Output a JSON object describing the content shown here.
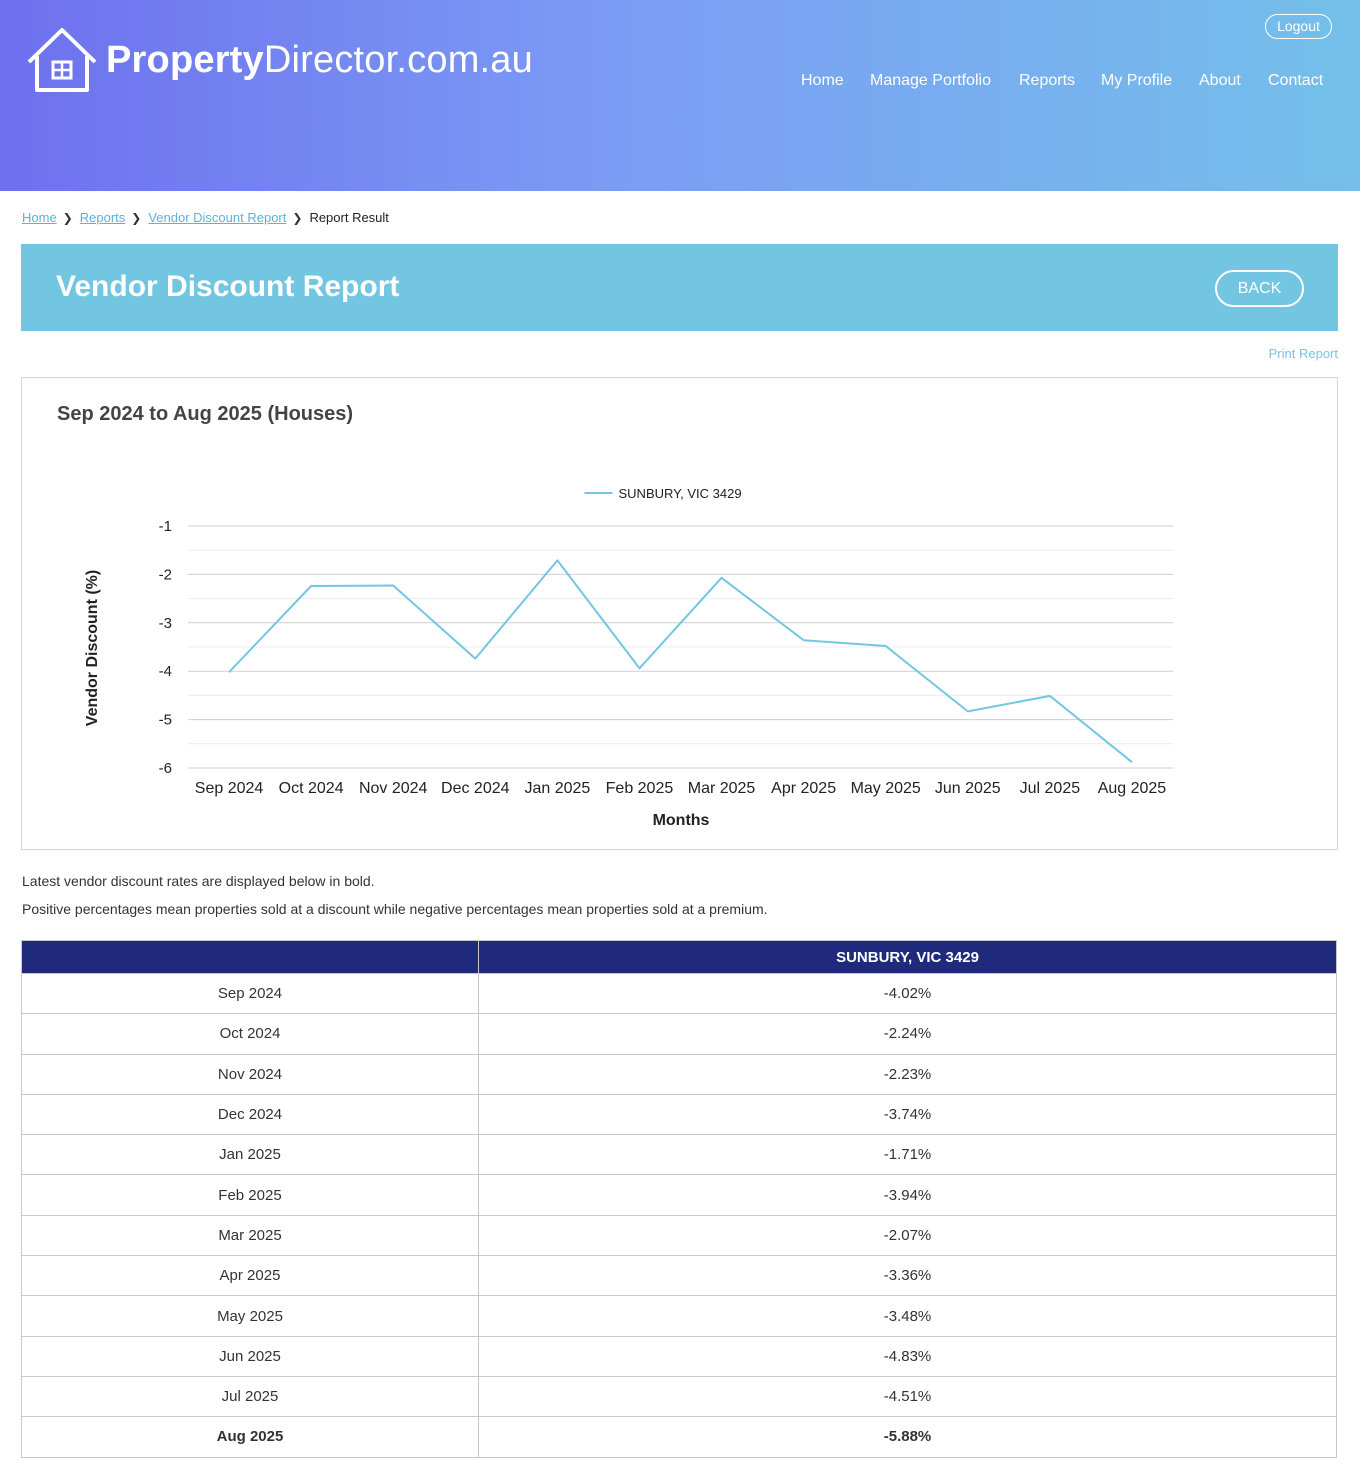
{
  "header": {
    "logo_bold": "Property",
    "logo_light": "Director.com.au",
    "logout_label": "Logout",
    "nav": [
      "Home",
      "Manage Portfolio",
      "Reports",
      "My Profile",
      "About",
      "Contact"
    ]
  },
  "breadcrumb": {
    "links": [
      "Home",
      "Reports",
      "Vendor Discount Report"
    ],
    "current": "Report Result"
  },
  "page": {
    "title": "Vendor Discount Report",
    "back_label": "BACK",
    "print_label": "Print Report"
  },
  "chart_panel": {
    "heading": "Sep 2024 to Aug 2025 (Houses)"
  },
  "chart_data": {
    "type": "line",
    "title": "",
    "xlabel": "Months",
    "ylabel": "Vendor Discount (%)",
    "categories": [
      "Sep 2024",
      "Oct 2024",
      "Nov 2024",
      "Dec 2024",
      "Jan 2025",
      "Feb 2025",
      "Mar 2025",
      "Apr 2025",
      "May 2025",
      "Jun 2025",
      "Jul 2025",
      "Aug 2025"
    ],
    "series": [
      {
        "name": "SUNBURY, VIC 3429",
        "color": "#72c6e2",
        "values": [
          -4.02,
          -2.24,
          -2.23,
          -3.74,
          -1.71,
          -3.94,
          -2.07,
          -3.36,
          -3.48,
          -4.83,
          -4.51,
          -5.88
        ]
      }
    ],
    "ylim": [
      -6,
      -1
    ],
    "yticks": [
      -1,
      -2,
      -3,
      -4,
      -5,
      -6
    ],
    "grid": true,
    "legend": "top-center"
  },
  "notes": [
    "Latest vendor discount rates are displayed below in bold.",
    "Positive percentages mean properties sold at a discount while negative percentages mean properties sold at a premium."
  ],
  "table": {
    "headers": [
      "",
      "SUNBURY, VIC 3429"
    ],
    "rows": [
      {
        "month": "Sep 2024",
        "value": "-4.02%"
      },
      {
        "month": "Oct 2024",
        "value": "-2.24%"
      },
      {
        "month": "Nov 2024",
        "value": "-2.23%"
      },
      {
        "month": "Dec 2024",
        "value": "-3.74%"
      },
      {
        "month": "Jan 2025",
        "value": "-1.71%"
      },
      {
        "month": "Feb 2025",
        "value": "-3.94%"
      },
      {
        "month": "Mar 2025",
        "value": "-2.07%"
      },
      {
        "month": "Apr 2025",
        "value": "-3.36%"
      },
      {
        "month": "May 2025",
        "value": "-3.48%"
      },
      {
        "month": "Jun 2025",
        "value": "-4.83%"
      },
      {
        "month": "Jul 2025",
        "value": "-4.51%"
      },
      {
        "month": "Aug 2025",
        "value": "-5.88%"
      }
    ]
  },
  "colors": {
    "header_start": "#6e70ee",
    "header_end": "#74c0ea",
    "title_bar": "#72c6e2",
    "table_header": "#1f2a7c",
    "link": "#5ab4d6"
  }
}
